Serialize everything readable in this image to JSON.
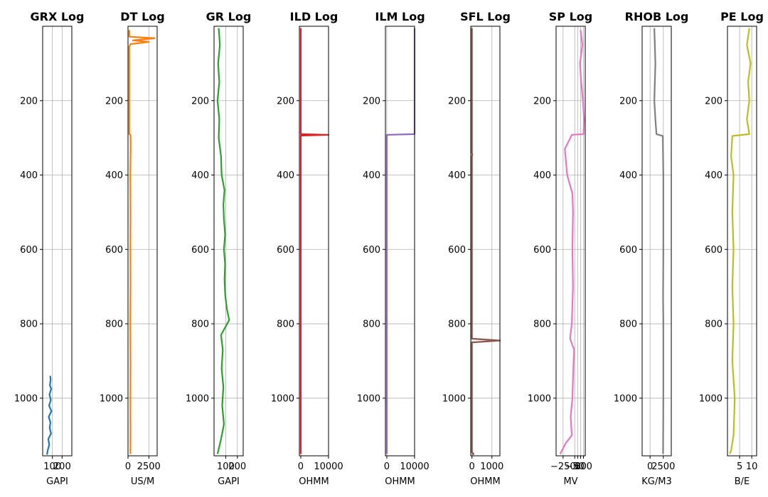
{
  "chart_data": [
    {
      "type": "line",
      "title": "GRX Log",
      "xlabel": "GAPI",
      "color": "#1f77b4",
      "xlim": [
        0,
        300
      ],
      "ylim": [
        1155,
        0
      ],
      "xticks": [
        {
          "v": 100,
          "label": "100"
        },
        {
          "v": 200,
          "label": "200"
        }
      ],
      "yticks": [
        200,
        400,
        600,
        800,
        1000
      ],
      "series": [
        {
          "points": [
            [
              78,
              940
            ],
            [
              82,
              950
            ],
            [
              74,
              965
            ],
            [
              88,
              975
            ],
            [
              70,
              990
            ],
            [
              84,
              1005
            ],
            [
              66,
              1020
            ],
            [
              90,
              1035
            ],
            [
              62,
              1050
            ],
            [
              80,
              1065
            ],
            [
              72,
              1080
            ],
            [
              86,
              1095
            ],
            [
              58,
              1110
            ],
            [
              68,
              1125
            ],
            [
              52,
              1140
            ],
            [
              45,
              1152
            ]
          ]
        }
      ]
    },
    {
      "type": "line",
      "title": "DT Log",
      "xlabel": "US/M",
      "color": "#ff7f0e",
      "xlim": [
        0,
        3500
      ],
      "ylim": [
        1155,
        0
      ],
      "xticks": [
        {
          "v": 0,
          "label": "0"
        },
        {
          "v": 2500,
          "label": "2500"
        }
      ],
      "yticks": [
        200,
        400,
        600,
        800,
        1000
      ],
      "series": [
        {
          "points": [
            [
              150,
              10
            ],
            [
              150,
              28
            ],
            [
              3200,
              32
            ],
            [
              600,
              38
            ],
            [
              2500,
              42
            ],
            [
              300,
              48
            ],
            [
              150,
              55
            ],
            [
              150,
              290
            ],
            [
              300,
              292
            ],
            [
              320,
              320
            ],
            [
              280,
              400
            ],
            [
              300,
              500
            ],
            [
              290,
              600
            ],
            [
              300,
              700
            ],
            [
              280,
              800
            ],
            [
              300,
              900
            ],
            [
              290,
              1000
            ],
            [
              300,
              1100
            ],
            [
              290,
              1150
            ]
          ]
        }
      ]
    },
    {
      "type": "line",
      "title": "GR Log",
      "xlabel": "GAPI",
      "color": "#2ca02c",
      "xlim": [
        0,
        250
      ],
      "ylim": [
        1155,
        0
      ],
      "xticks": [
        {
          "v": 100,
          "label": "100"
        },
        {
          "v": 200,
          "label": "200"
        }
      ],
      "yticks": [
        200,
        400,
        600,
        800,
        1000
      ],
      "series": [
        {
          "points": [
            [
              40,
              5
            ],
            [
              50,
              50
            ],
            [
              35,
              100
            ],
            [
              45,
              150
            ],
            [
              30,
              200
            ],
            [
              45,
              250
            ],
            [
              40,
              300
            ],
            [
              60,
              350
            ],
            [
              65,
              400
            ],
            [
              90,
              440
            ],
            [
              80,
              480
            ],
            [
              85,
              520
            ],
            [
              95,
              560
            ],
            [
              85,
              600
            ],
            [
              95,
              640
            ],
            [
              90,
              680
            ],
            [
              95,
              720
            ],
            [
              110,
              760
            ],
            [
              130,
              790
            ],
            [
              60,
              830
            ],
            [
              75,
              870
            ],
            [
              65,
              920
            ],
            [
              80,
              970
            ],
            [
              70,
              1020
            ],
            [
              85,
              1070
            ],
            [
              60,
              1110
            ],
            [
              30,
              1150
            ]
          ]
        }
      ]
    },
    {
      "type": "line",
      "title": "ILD Log",
      "xlabel": "OHMM",
      "color": "#d62728",
      "xlim": [
        -500,
        10000
      ],
      "ylim": [
        1155,
        0
      ],
      "xticks": [
        {
          "v": 0,
          "label": "0"
        },
        {
          "v": 10000,
          "label": "10000"
        }
      ],
      "yticks": [
        200,
        400,
        600,
        800,
        1000
      ],
      "series": [
        {
          "points": [
            [
              10,
              5
            ],
            [
              10,
              290
            ],
            [
              10000,
              292
            ],
            [
              10,
              294
            ],
            [
              10,
              1150
            ]
          ]
        }
      ]
    },
    {
      "type": "line",
      "title": "ILM Log",
      "xlabel": "OHMM",
      "color": "#9467bd",
      "xlim": [
        -500,
        10000
      ],
      "ylim": [
        1155,
        0
      ],
      "xticks": [
        {
          "v": 0,
          "label": "0"
        },
        {
          "v": 10000,
          "label": "10000"
        }
      ],
      "yticks": [
        200,
        400,
        600,
        800,
        1000
      ],
      "series": [
        {
          "points": [
            [
              10000,
              5
            ],
            [
              10000,
              290
            ],
            [
              0,
              292
            ],
            [
              0,
              1150
            ]
          ]
        }
      ]
    },
    {
      "type": "line",
      "title": "SFL Log",
      "xlabel": "OHMM",
      "color": "#8c564b",
      "xlim": [
        -60,
        1400
      ],
      "ylim": [
        1155,
        0
      ],
      "xticks": [
        {
          "v": 0,
          "label": "0"
        },
        {
          "v": 1000,
          "label": "1000"
        }
      ],
      "yticks": [
        200,
        400,
        600,
        800,
        1000
      ],
      "series": [
        {
          "points": [
            [
              0,
              5
            ],
            [
              0,
              340
            ],
            [
              20,
              345
            ],
            [
              0,
              350
            ],
            [
              0,
              840
            ],
            [
              1400,
              845
            ],
            [
              0,
              850
            ],
            [
              0,
              1145
            ],
            [
              80,
              1150
            ],
            [
              20,
              1152
            ]
          ]
        }
      ]
    },
    {
      "type": "line",
      "title": "SP Log",
      "xlabel": "MV",
      "color": "#e377c2",
      "xlim": [
        -370,
        130
      ],
      "ylim": [
        1155,
        0
      ],
      "xticks": [
        {
          "v": -250,
          "label": "−250"
        },
        {
          "v": -50,
          "label": "−50"
        },
        {
          "v": 0,
          "label": "0"
        },
        {
          "v": 50,
          "label": "50"
        },
        {
          "v": 100,
          "label": "100"
        }
      ],
      "yticks": [
        200,
        400,
        600,
        800,
        1000
      ],
      "series": [
        {
          "points": [
            [
              50,
              10
            ],
            [
              80,
              50
            ],
            [
              40,
              100
            ],
            [
              60,
              150
            ],
            [
              90,
              200
            ],
            [
              110,
              250
            ],
            [
              100,
              290
            ],
            [
              -100,
              292
            ],
            [
              -220,
              330
            ],
            [
              -180,
              400
            ],
            [
              -90,
              450
            ],
            [
              -80,
              500
            ],
            [
              -90,
              600
            ],
            [
              -80,
              700
            ],
            [
              -100,
              800
            ],
            [
              -130,
              840
            ],
            [
              -60,
              870
            ],
            [
              -70,
              900
            ],
            [
              -90,
              1000
            ],
            [
              -120,
              1050
            ],
            [
              -100,
              1100
            ],
            [
              -200,
              1120
            ],
            [
              -300,
              1150
            ]
          ]
        }
      ]
    },
    {
      "type": "line",
      "title": "RHOB Log",
      "xlabel": "KG/M3",
      "color": "#7f7f7f",
      "xlim": [
        -1500,
        4000
      ],
      "ylim": [
        1155,
        0
      ],
      "xticks": [
        {
          "v": 0,
          "label": "0"
        },
        {
          "v": 2500,
          "label": "2500"
        }
      ],
      "yticks": [
        200,
        400,
        600,
        800,
        1000
      ],
      "series": [
        {
          "points": [
            [
              800,
              5
            ],
            [
              900,
              50
            ],
            [
              1000,
              100
            ],
            [
              900,
              150
            ],
            [
              800,
              200
            ],
            [
              1000,
              250
            ],
            [
              1200,
              290
            ],
            [
              2400,
              295
            ],
            [
              2500,
              400
            ],
            [
              2500,
              600
            ],
            [
              2450,
              730
            ],
            [
              2500,
              800
            ],
            [
              2500,
              1000
            ],
            [
              2450,
              1150
            ]
          ]
        }
      ]
    },
    {
      "type": "line",
      "title": "PE Log",
      "xlabel": "B/E",
      "color": "#bcbd22",
      "xlim": [
        0,
        12
      ],
      "ylim": [
        1155,
        0
      ],
      "xticks": [
        {
          "v": 5,
          "label": "5"
        },
        {
          "v": 10,
          "label": "10"
        }
      ],
      "yticks": [
        200,
        400,
        600,
        800,
        1000
      ],
      "series": [
        {
          "points": [
            [
              9,
              5
            ],
            [
              8,
              50
            ],
            [
              9.5,
              100
            ],
            [
              8.5,
              150
            ],
            [
              9,
              200
            ],
            [
              8,
              250
            ],
            [
              9,
              290
            ],
            [
              2,
              295
            ],
            [
              1.5,
              350
            ],
            [
              2.5,
              400
            ],
            [
              2,
              500
            ],
            [
              2.5,
              600
            ],
            [
              2,
              700
            ],
            [
              2.5,
              800
            ],
            [
              2,
              900
            ],
            [
              3,
              1000
            ],
            [
              2.5,
              1100
            ],
            [
              1.5,
              1140
            ],
            [
              1,
              1150
            ]
          ]
        }
      ]
    }
  ]
}
